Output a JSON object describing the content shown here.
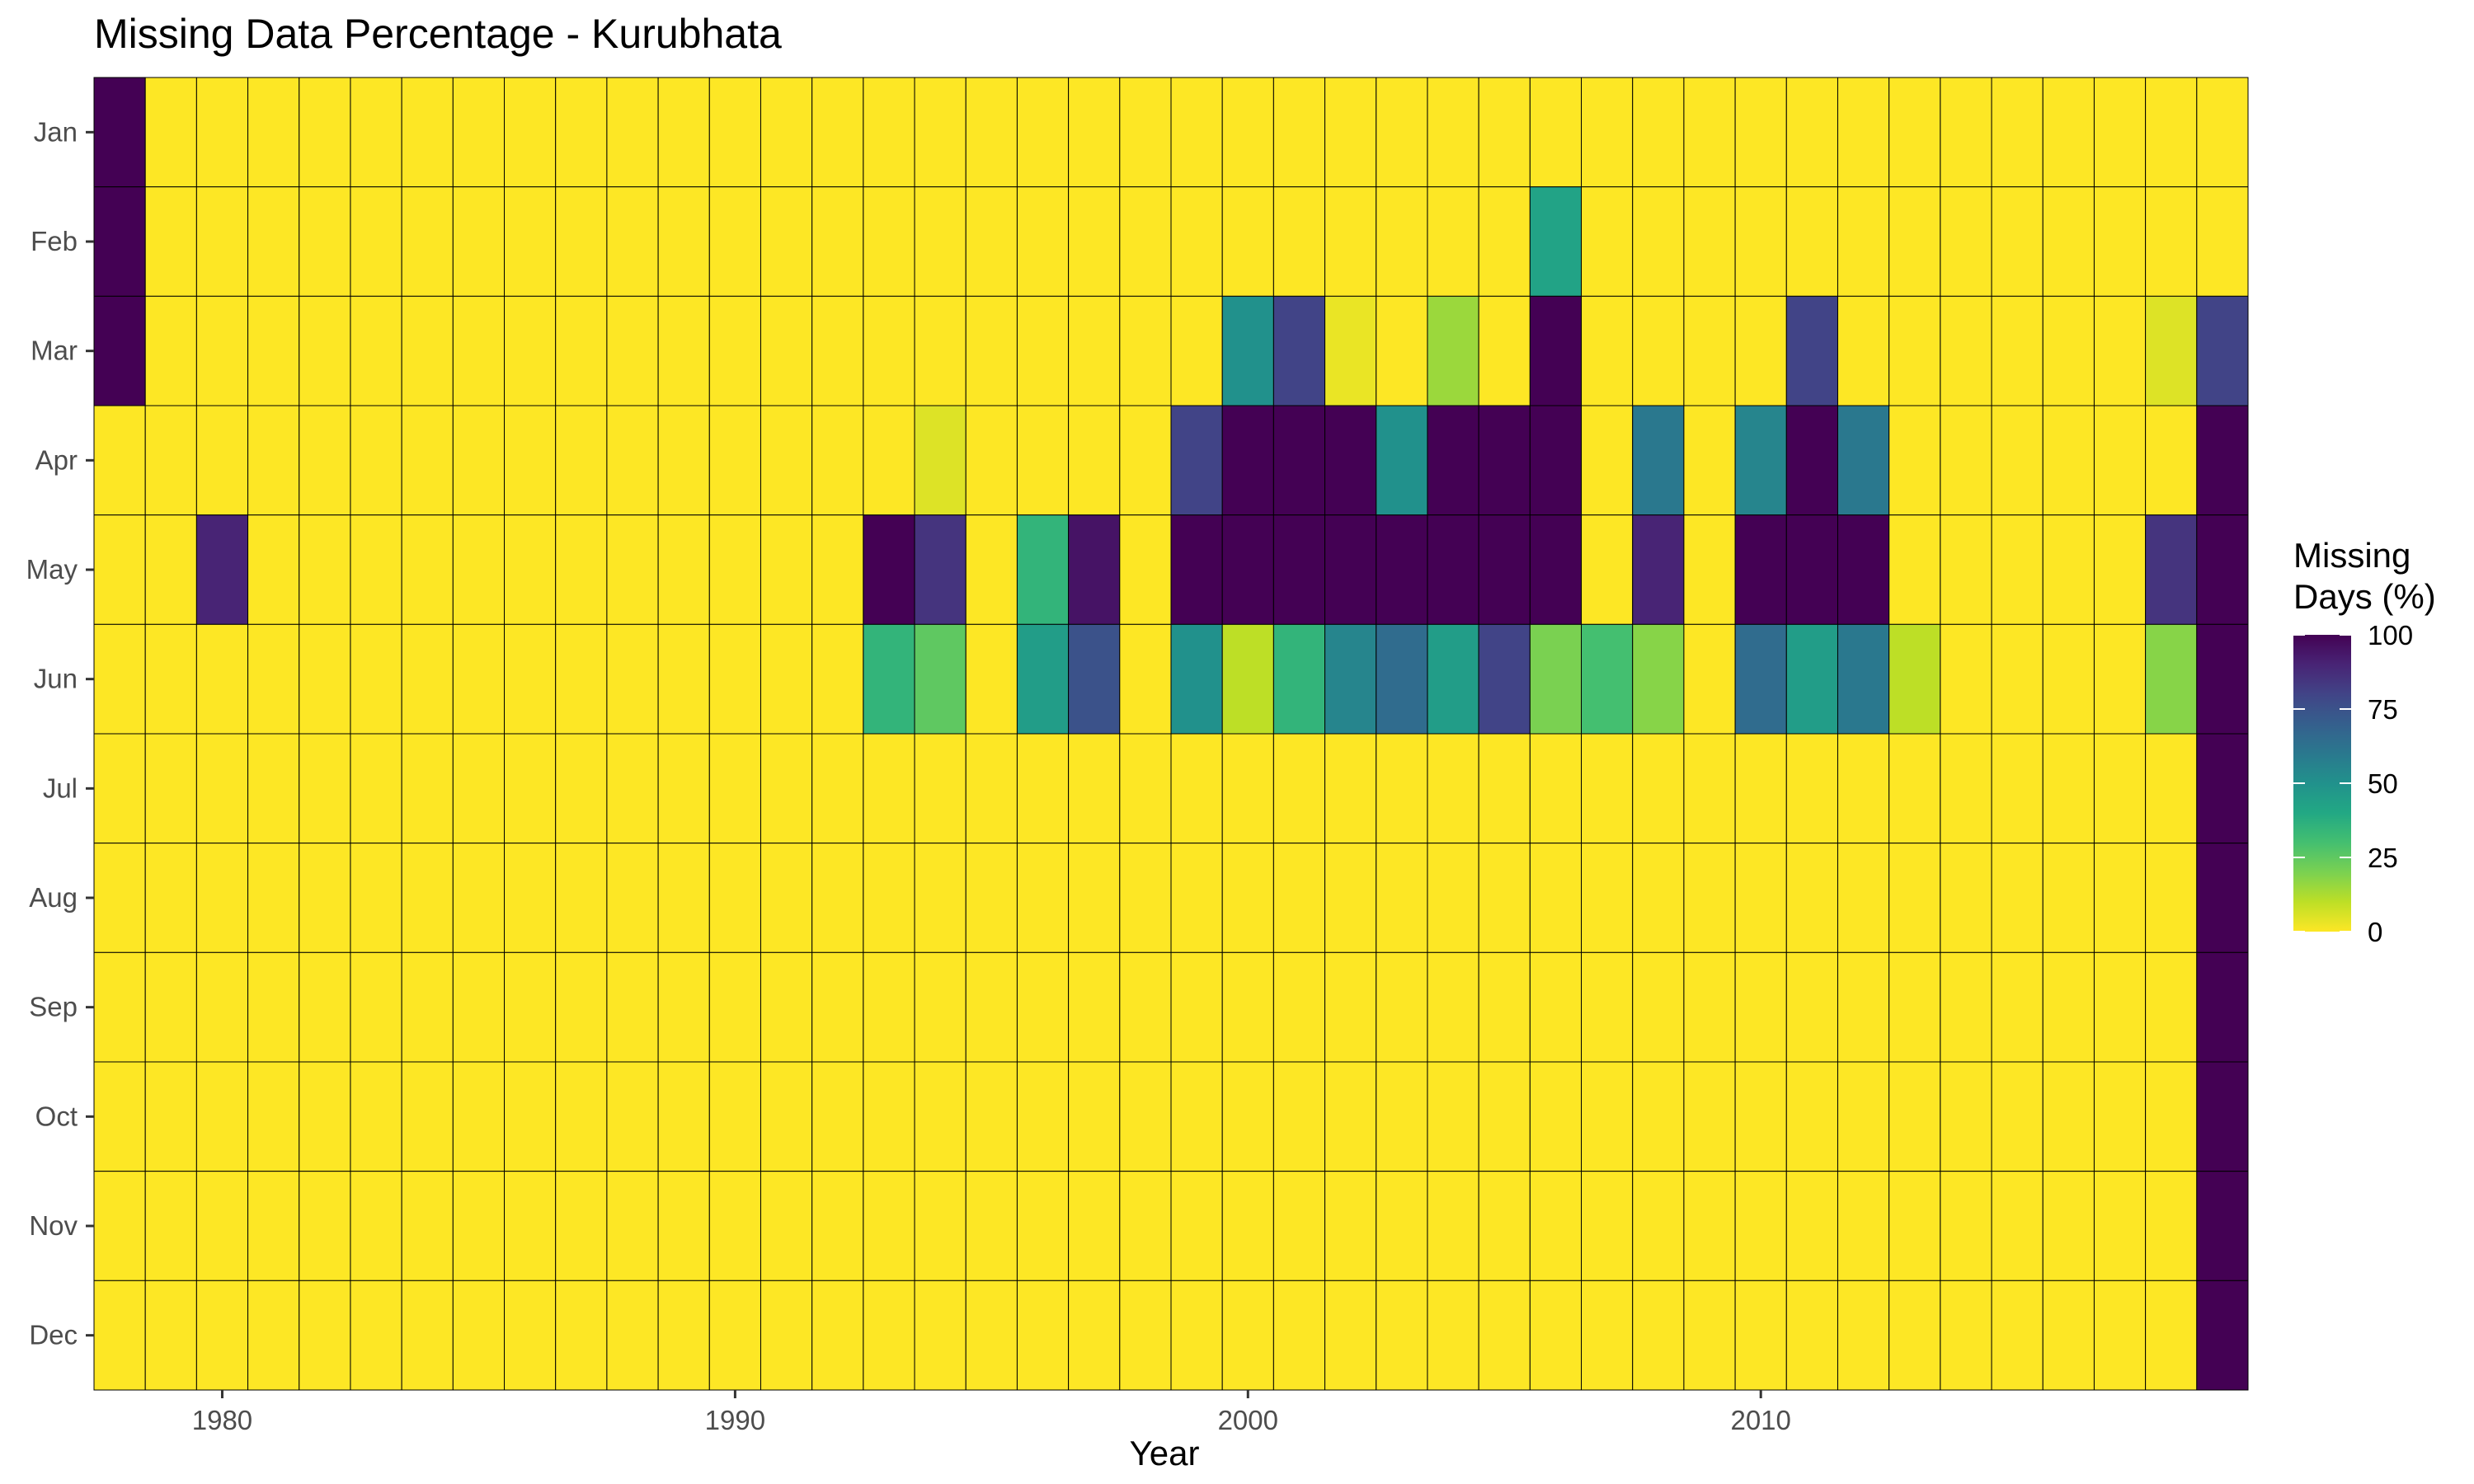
{
  "chart_data": {
    "type": "heatmap",
    "title": "Missing Data Percentage - Kurubhata",
    "xlabel": "Year",
    "ylabel": "",
    "years": [
      1978,
      1979,
      1980,
      1981,
      1982,
      1983,
      1984,
      1985,
      1986,
      1987,
      1988,
      1989,
      1990,
      1991,
      1992,
      1993,
      1994,
      1995,
      1996,
      1997,
      1998,
      1999,
      2000,
      2001,
      2002,
      2003,
      2004,
      2005,
      2006,
      2007,
      2008,
      2009,
      2010,
      2011,
      2012,
      2013,
      2014,
      2015,
      2016,
      2017,
      2018,
      2019
    ],
    "months": [
      "Jan",
      "Feb",
      "Mar",
      "Apr",
      "May",
      "Jun",
      "Jul",
      "Aug",
      "Sep",
      "Oct",
      "Nov",
      "Dec"
    ],
    "x_ticks": [
      1980,
      1990,
      2000,
      2010
    ],
    "values": [
      [
        100,
        0,
        0,
        0,
        0,
        0,
        0,
        0,
        0,
        0,
        0,
        0,
        0,
        0,
        0,
        0,
        0,
        0,
        0,
        0,
        0,
        0,
        0,
        0,
        0,
        0,
        0,
        0,
        0,
        0,
        0,
        0,
        0,
        0,
        0,
        0,
        0,
        0,
        0,
        0,
        0,
        0
      ],
      [
        100,
        0,
        0,
        0,
        0,
        0,
        0,
        0,
        0,
        0,
        0,
        0,
        0,
        0,
        0,
        0,
        0,
        0,
        0,
        0,
        0,
        0,
        0,
        0,
        0,
        0,
        0,
        0,
        42,
        0,
        0,
        0,
        0,
        0,
        0,
        0,
        0,
        0,
        0,
        0,
        0,
        0
      ],
      [
        100,
        0,
        0,
        0,
        0,
        0,
        0,
        0,
        0,
        0,
        0,
        0,
        0,
        0,
        0,
        0,
        0,
        0,
        0,
        0,
        0,
        0,
        50,
        80,
        3,
        0,
        15,
        0,
        100,
        0,
        0,
        0,
        0,
        80,
        0,
        0,
        0,
        0,
        0,
        0,
        5,
        80
      ],
      [
        0,
        0,
        0,
        0,
        0,
        0,
        0,
        0,
        0,
        0,
        0,
        0,
        0,
        0,
        0,
        0,
        5,
        0,
        0,
        0,
        0,
        80,
        100,
        100,
        100,
        50,
        100,
        100,
        100,
        0,
        60,
        0,
        55,
        100,
        60,
        0,
        0,
        0,
        0,
        0,
        0,
        100
      ],
      [
        0,
        0,
        90,
        0,
        0,
        0,
        0,
        0,
        0,
        0,
        0,
        0,
        0,
        0,
        0,
        100,
        85,
        0,
        35,
        95,
        0,
        100,
        100,
        100,
        100,
        100,
        100,
        100,
        100,
        0,
        90,
        0,
        100,
        100,
        100,
        0,
        0,
        0,
        0,
        0,
        85,
        100
      ],
      [
        0,
        0,
        0,
        0,
        0,
        0,
        0,
        0,
        0,
        0,
        0,
        0,
        0,
        0,
        0,
        35,
        25,
        0,
        45,
        75,
        0,
        50,
        10,
        35,
        55,
        65,
        45,
        80,
        20,
        30,
        18,
        0,
        65,
        45,
        60,
        10,
        0,
        0,
        0,
        0,
        18,
        100
      ],
      [
        0,
        0,
        0,
        0,
        0,
        0,
        0,
        0,
        0,
        0,
        0,
        0,
        0,
        0,
        0,
        0,
        0,
        0,
        0,
        0,
        0,
        0,
        0,
        0,
        0,
        0,
        0,
        0,
        0,
        0,
        0,
        0,
        0,
        0,
        0,
        0,
        0,
        0,
        0,
        0,
        0,
        100
      ],
      [
        0,
        0,
        0,
        0,
        0,
        0,
        0,
        0,
        0,
        0,
        0,
        0,
        0,
        0,
        0,
        0,
        0,
        0,
        0,
        0,
        0,
        0,
        0,
        0,
        0,
        0,
        0,
        0,
        0,
        0,
        0,
        0,
        0,
        0,
        0,
        0,
        0,
        0,
        0,
        0,
        0,
        100
      ],
      [
        0,
        0,
        0,
        0,
        0,
        0,
        0,
        0,
        0,
        0,
        0,
        0,
        0,
        0,
        0,
        0,
        0,
        0,
        0,
        0,
        0,
        0,
        0,
        0,
        0,
        0,
        0,
        0,
        0,
        0,
        0,
        0,
        0,
        0,
        0,
        0,
        0,
        0,
        0,
        0,
        0,
        100
      ],
      [
        0,
        0,
        0,
        0,
        0,
        0,
        0,
        0,
        0,
        0,
        0,
        0,
        0,
        0,
        0,
        0,
        0,
        0,
        0,
        0,
        0,
        0,
        0,
        0,
        0,
        0,
        0,
        0,
        0,
        0,
        0,
        0,
        0,
        0,
        0,
        0,
        0,
        0,
        0,
        0,
        0,
        100
      ],
      [
        0,
        0,
        0,
        0,
        0,
        0,
        0,
        0,
        0,
        0,
        0,
        0,
        0,
        0,
        0,
        0,
        0,
        0,
        0,
        0,
        0,
        0,
        0,
        0,
        0,
        0,
        0,
        0,
        0,
        0,
        0,
        0,
        0,
        0,
        0,
        0,
        0,
        0,
        0,
        0,
        0,
        100
      ],
      [
        0,
        0,
        0,
        0,
        0,
        0,
        0,
        0,
        0,
        0,
        0,
        0,
        0,
        0,
        0,
        0,
        0,
        0,
        0,
        0,
        0,
        0,
        0,
        0,
        0,
        0,
        0,
        0,
        0,
        0,
        0,
        0,
        0,
        0,
        0,
        0,
        0,
        0,
        0,
        0,
        0,
        100
      ]
    ],
    "legend": {
      "title_line1": "Missing",
      "title_line2": "Days (%)",
      "ticks": [
        100,
        75,
        50,
        25,
        0
      ],
      "tick_labels": [
        "100",
        "75",
        "50",
        "25",
        "0"
      ],
      "range": [
        0,
        100
      ],
      "placement": "right"
    },
    "colormap": "viridis-reversed",
    "cell_border_color": "#000000",
    "low_color": "#fde725",
    "high_color": "#440154",
    "grid": false
  }
}
